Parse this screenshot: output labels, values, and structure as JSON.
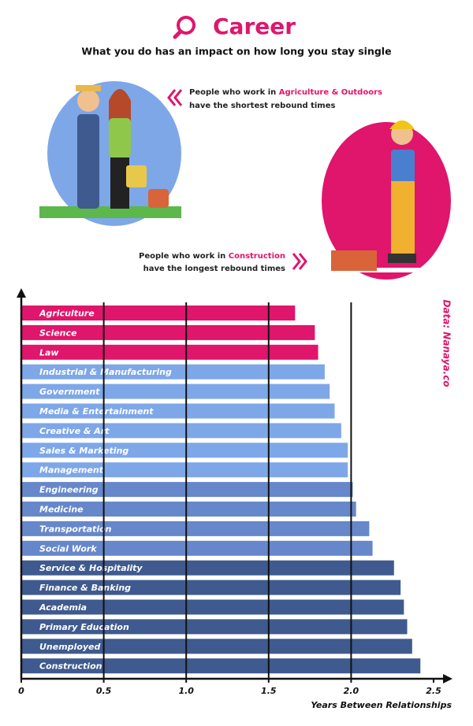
{
  "chart_data": {
    "type": "bar",
    "orientation": "horizontal",
    "title": "Career",
    "subtitle": "What you do has an impact on how long you stay single",
    "annotations": [
      {
        "prefix": "People who work in ",
        "highlight": "Agriculture & Outdoors",
        "rest": "have the shortest rebound times"
      },
      {
        "prefix": "People who work in ",
        "highlight": "Construction",
        "rest": "have the longest rebound times"
      }
    ],
    "source": "Data: Nanaya.co",
    "xlabel": "Years Between Relationships",
    "categories": [
      "Agriculture",
      "Science",
      "Law",
      "Industrial & Manufacturing",
      "Government",
      "Media & Entertainment",
      "Creative & Art",
      "Sales & Marketing",
      "Management",
      "Engineering",
      "Medicine",
      "Transportation",
      "Social Work",
      "Service & Hospitality",
      "Finance & Banking",
      "Academia",
      "Primary Education",
      "Unemployed",
      "Construction"
    ],
    "values": [
      1.66,
      1.78,
      1.8,
      1.84,
      1.87,
      1.9,
      1.94,
      1.98,
      1.98,
      2.01,
      2.03,
      2.11,
      2.13,
      2.26,
      2.3,
      2.32,
      2.34,
      2.37,
      2.42
    ],
    "colors": [
      "#e0156c",
      "#e0156c",
      "#e0156c",
      "#7ea7e8",
      "#7ea7e8",
      "#7ea7e8",
      "#7ea7e8",
      "#7ea7e8",
      "#7ea7e8",
      "#6787cb",
      "#6787cb",
      "#6787cb",
      "#6787cb",
      "#3f5a8e",
      "#3f5a8e",
      "#3f5a8e",
      "#3f5a8e",
      "#3f5a8e",
      "#3f5a8e"
    ],
    "xlim": [
      0,
      2.5
    ],
    "xticks": [
      0,
      0.5,
      {
        "value": 1,
        "label": "1.0"
      },
      1.5,
      {
        "value": 2,
        "label": "2.0"
      },
      2.5
    ],
    "grid": true
  }
}
